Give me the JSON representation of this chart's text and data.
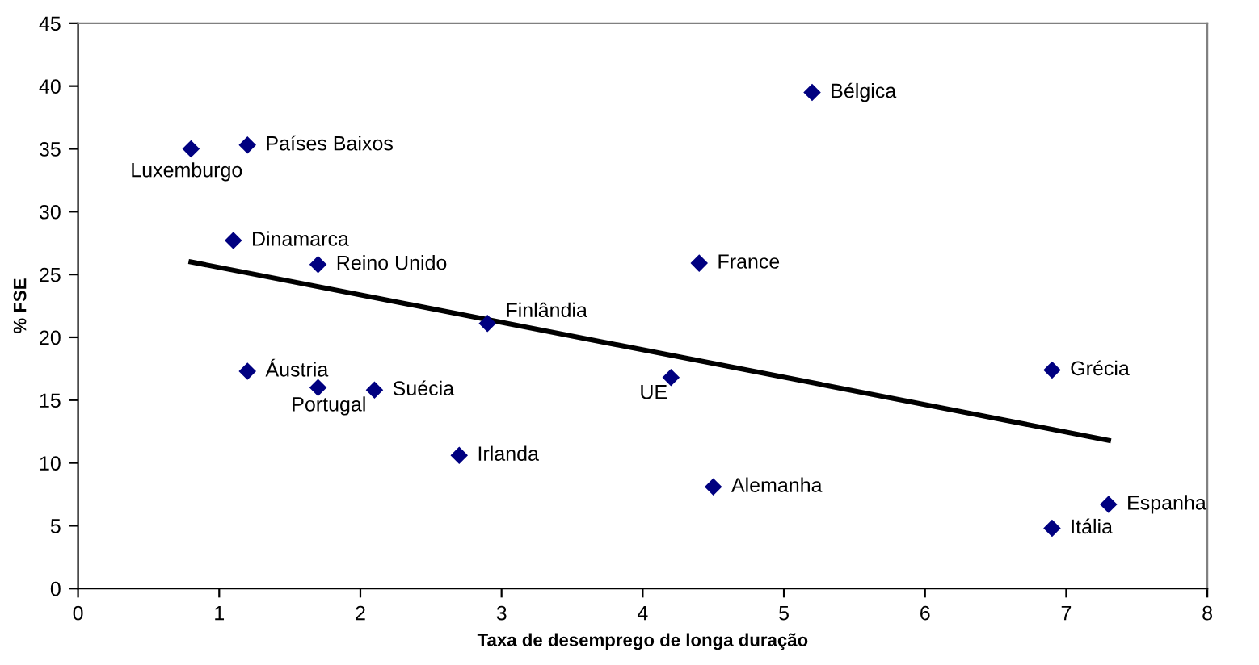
{
  "chart_data": {
    "type": "scatter",
    "xlabel": "Taxa de desemprego de longa duração",
    "ylabel": "% FSE",
    "xlim": [
      0,
      8
    ],
    "xticks": [
      0,
      1,
      2,
      3,
      4,
      5,
      6,
      7,
      8
    ],
    "ylim": [
      0,
      45
    ],
    "yticks": [
      0,
      5,
      10,
      15,
      20,
      25,
      30,
      35,
      40,
      45
    ],
    "grid": false,
    "legend": false,
    "marker": "diamond",
    "series": [
      {
        "color": "#000080",
        "x": [
          0.8,
          1.2,
          1.1,
          1.7,
          2.9,
          1.2,
          1.7,
          2.1,
          2.7,
          5.2,
          4.4,
          4.2,
          4.5,
          6.9,
          7.3,
          6.9
        ],
        "values": [
          35.0,
          35.3,
          27.7,
          25.8,
          21.1,
          17.3,
          16.0,
          15.8,
          10.6,
          39.5,
          25.9,
          16.8,
          8.1,
          17.4,
          6.7,
          4.8
        ]
      },
      {
        "type": "line",
        "color": "#000000",
        "marker": "none",
        "line_style": "solid",
        "x": [
          0.8,
          7.3
        ],
        "values": [
          26.0,
          11.8
        ]
      }
    ],
    "annotations": [
      {
        "text": "Luxemburgo",
        "x": 0.8,
        "y": 35.0
      },
      {
        "text": "Países Baixos",
        "x": 1.2,
        "y": 35.3
      },
      {
        "text": "Dinamarca",
        "x": 1.1,
        "y": 27.7
      },
      {
        "text": "Reino Unido",
        "x": 1.7,
        "y": 25.8
      },
      {
        "text": "Finlândia",
        "x": 2.9,
        "y": 21.1
      },
      {
        "text": "Áustria",
        "x": 1.2,
        "y": 17.3
      },
      {
        "text": "Portugal",
        "x": 1.7,
        "y": 16.0
      },
      {
        "text": "Suécia",
        "x": 2.1,
        "y": 15.8
      },
      {
        "text": "Irlanda",
        "x": 2.7,
        "y": 10.6
      },
      {
        "text": "Bélgica",
        "x": 5.2,
        "y": 39.5
      },
      {
        "text": "France",
        "x": 4.4,
        "y": 25.9
      },
      {
        "text": "UE",
        "x": 4.2,
        "y": 16.8
      },
      {
        "text": "Alemanha",
        "x": 4.5,
        "y": 8.1
      },
      {
        "text": "Grécia",
        "x": 6.9,
        "y": 17.4
      },
      {
        "text": "Espanha",
        "x": 7.3,
        "y": 6.7
      },
      {
        "text": "Itália",
        "x": 6.9,
        "y": 4.8
      }
    ]
  }
}
